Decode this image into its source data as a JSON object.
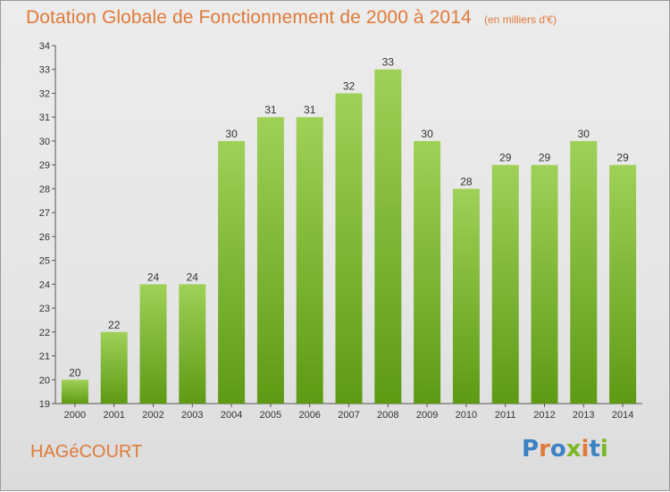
{
  "header": {
    "title": "Dotation Globale de Fonctionnement de 2000 à 2014",
    "subtitle": "(en milliers d'€)"
  },
  "footer": {
    "commune": "HAGéCOURT",
    "logo_text": "Proxiti"
  },
  "colors": {
    "accent": "#e07a3a",
    "bar_top": "#9fd158",
    "bar_bottom": "#5e9a14",
    "logo_letters": [
      "#3a82c4",
      "#e07a3a",
      "#3a82c4",
      "#7ab826",
      "#e07a3a",
      "#3a82c4",
      "#7ab826"
    ]
  },
  "chart_data": {
    "type": "bar",
    "categories": [
      "2000",
      "2001",
      "2002",
      "2003",
      "2004",
      "2005",
      "2006",
      "2007",
      "2008",
      "2009",
      "2010",
      "2011",
      "2012",
      "2013",
      "2014"
    ],
    "values": [
      20,
      22,
      24,
      24,
      30,
      31,
      31,
      32,
      33,
      30,
      28,
      29,
      29,
      30,
      29
    ],
    "ylim": [
      19,
      34
    ],
    "yticks": [
      19,
      20,
      21,
      22,
      23,
      24,
      25,
      26,
      27,
      28,
      29,
      30,
      31,
      32,
      33,
      34
    ],
    "grid": false,
    "data_labels": true
  }
}
